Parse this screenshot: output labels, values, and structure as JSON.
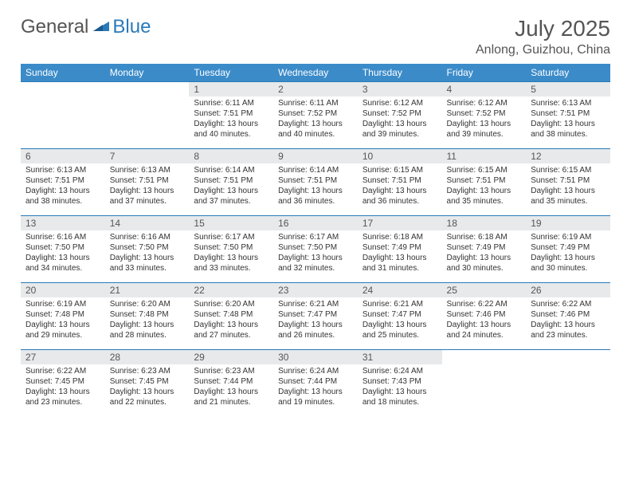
{
  "logo": {
    "g": "General",
    "b": "Blue"
  },
  "title": "July 2025",
  "location": "Anlong, Guizhou, China",
  "colors": {
    "header_bg": "#3b8bc9",
    "header_text": "#ffffff",
    "daynum_bg": "#e7e9eb",
    "border": "#2a7ab8",
    "body_text": "#333333",
    "title_text": "#555555",
    "logo_blue": "#2a7ab8"
  },
  "days_of_week": [
    "Sunday",
    "Monday",
    "Tuesday",
    "Wednesday",
    "Thursday",
    "Friday",
    "Saturday"
  ],
  "weeks": [
    [
      {
        "n": "",
        "sr": "",
        "ss": "",
        "dl": ""
      },
      {
        "n": "",
        "sr": "",
        "ss": "",
        "dl": ""
      },
      {
        "n": "1",
        "sr": "6:11 AM",
        "ss": "7:51 PM",
        "dl": "13 hours and 40 minutes."
      },
      {
        "n": "2",
        "sr": "6:11 AM",
        "ss": "7:52 PM",
        "dl": "13 hours and 40 minutes."
      },
      {
        "n": "3",
        "sr": "6:12 AM",
        "ss": "7:52 PM",
        "dl": "13 hours and 39 minutes."
      },
      {
        "n": "4",
        "sr": "6:12 AM",
        "ss": "7:52 PM",
        "dl": "13 hours and 39 minutes."
      },
      {
        "n": "5",
        "sr": "6:13 AM",
        "ss": "7:51 PM",
        "dl": "13 hours and 38 minutes."
      }
    ],
    [
      {
        "n": "6",
        "sr": "6:13 AM",
        "ss": "7:51 PM",
        "dl": "13 hours and 38 minutes."
      },
      {
        "n": "7",
        "sr": "6:13 AM",
        "ss": "7:51 PM",
        "dl": "13 hours and 37 minutes."
      },
      {
        "n": "8",
        "sr": "6:14 AM",
        "ss": "7:51 PM",
        "dl": "13 hours and 37 minutes."
      },
      {
        "n": "9",
        "sr": "6:14 AM",
        "ss": "7:51 PM",
        "dl": "13 hours and 36 minutes."
      },
      {
        "n": "10",
        "sr": "6:15 AM",
        "ss": "7:51 PM",
        "dl": "13 hours and 36 minutes."
      },
      {
        "n": "11",
        "sr": "6:15 AM",
        "ss": "7:51 PM",
        "dl": "13 hours and 35 minutes."
      },
      {
        "n": "12",
        "sr": "6:15 AM",
        "ss": "7:51 PM",
        "dl": "13 hours and 35 minutes."
      }
    ],
    [
      {
        "n": "13",
        "sr": "6:16 AM",
        "ss": "7:50 PM",
        "dl": "13 hours and 34 minutes."
      },
      {
        "n": "14",
        "sr": "6:16 AM",
        "ss": "7:50 PM",
        "dl": "13 hours and 33 minutes."
      },
      {
        "n": "15",
        "sr": "6:17 AM",
        "ss": "7:50 PM",
        "dl": "13 hours and 33 minutes."
      },
      {
        "n": "16",
        "sr": "6:17 AM",
        "ss": "7:50 PM",
        "dl": "13 hours and 32 minutes."
      },
      {
        "n": "17",
        "sr": "6:18 AM",
        "ss": "7:49 PM",
        "dl": "13 hours and 31 minutes."
      },
      {
        "n": "18",
        "sr": "6:18 AM",
        "ss": "7:49 PM",
        "dl": "13 hours and 30 minutes."
      },
      {
        "n": "19",
        "sr": "6:19 AM",
        "ss": "7:49 PM",
        "dl": "13 hours and 30 minutes."
      }
    ],
    [
      {
        "n": "20",
        "sr": "6:19 AM",
        "ss": "7:48 PM",
        "dl": "13 hours and 29 minutes."
      },
      {
        "n": "21",
        "sr": "6:20 AM",
        "ss": "7:48 PM",
        "dl": "13 hours and 28 minutes."
      },
      {
        "n": "22",
        "sr": "6:20 AM",
        "ss": "7:48 PM",
        "dl": "13 hours and 27 minutes."
      },
      {
        "n": "23",
        "sr": "6:21 AM",
        "ss": "7:47 PM",
        "dl": "13 hours and 26 minutes."
      },
      {
        "n": "24",
        "sr": "6:21 AM",
        "ss": "7:47 PM",
        "dl": "13 hours and 25 minutes."
      },
      {
        "n": "25",
        "sr": "6:22 AM",
        "ss": "7:46 PM",
        "dl": "13 hours and 24 minutes."
      },
      {
        "n": "26",
        "sr": "6:22 AM",
        "ss": "7:46 PM",
        "dl": "13 hours and 23 minutes."
      }
    ],
    [
      {
        "n": "27",
        "sr": "6:22 AM",
        "ss": "7:45 PM",
        "dl": "13 hours and 23 minutes."
      },
      {
        "n": "28",
        "sr": "6:23 AM",
        "ss": "7:45 PM",
        "dl": "13 hours and 22 minutes."
      },
      {
        "n": "29",
        "sr": "6:23 AM",
        "ss": "7:44 PM",
        "dl": "13 hours and 21 minutes."
      },
      {
        "n": "30",
        "sr": "6:24 AM",
        "ss": "7:44 PM",
        "dl": "13 hours and 19 minutes."
      },
      {
        "n": "31",
        "sr": "6:24 AM",
        "ss": "7:43 PM",
        "dl": "13 hours and 18 minutes."
      },
      {
        "n": "",
        "sr": "",
        "ss": "",
        "dl": ""
      },
      {
        "n": "",
        "sr": "",
        "ss": "",
        "dl": ""
      }
    ]
  ],
  "labels": {
    "sunrise": "Sunrise:",
    "sunset": "Sunset:",
    "daylight": "Daylight:"
  }
}
